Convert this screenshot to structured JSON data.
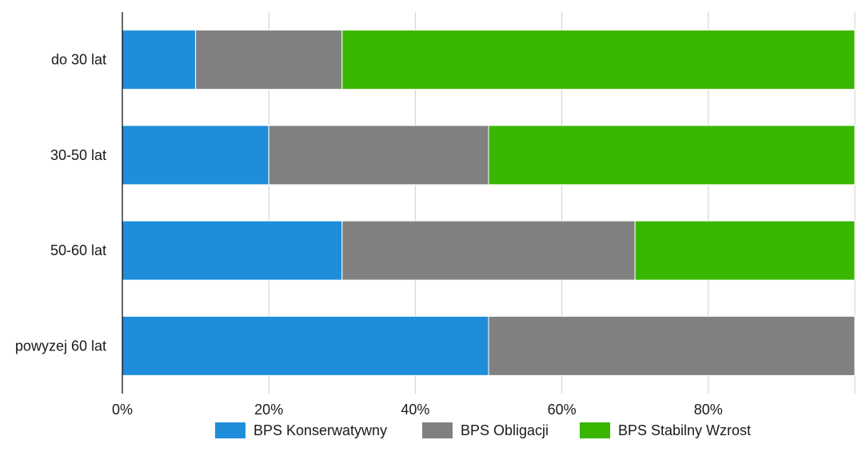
{
  "chart_data": {
    "type": "bar",
    "orientation": "horizontal",
    "stacked": true,
    "categories": [
      "do 30 lat",
      "30-50 lat",
      "50-60 lat",
      "powyzej 60 lat"
    ],
    "series": [
      {
        "name": "BPS Konserwatywny",
        "color": "#1f8dd9",
        "values": [
          10,
          20,
          30,
          50
        ]
      },
      {
        "name": "BPS Obligacji",
        "color": "#808080",
        "values": [
          20,
          30,
          40,
          50
        ]
      },
      {
        "name": "BPS Stabilny Wzrost",
        "color": "#38b600",
        "values": [
          70,
          50,
          30,
          0
        ]
      }
    ],
    "xlim": [
      0,
      100
    ],
    "x_ticks": [
      0,
      20,
      40,
      60,
      80
    ],
    "x_tick_labels": [
      "0%",
      "20%",
      "40%",
      "60%",
      "80%"
    ],
    "grid": true,
    "legend_position": "bottom",
    "title": "",
    "xlabel": "",
    "ylabel": ""
  }
}
